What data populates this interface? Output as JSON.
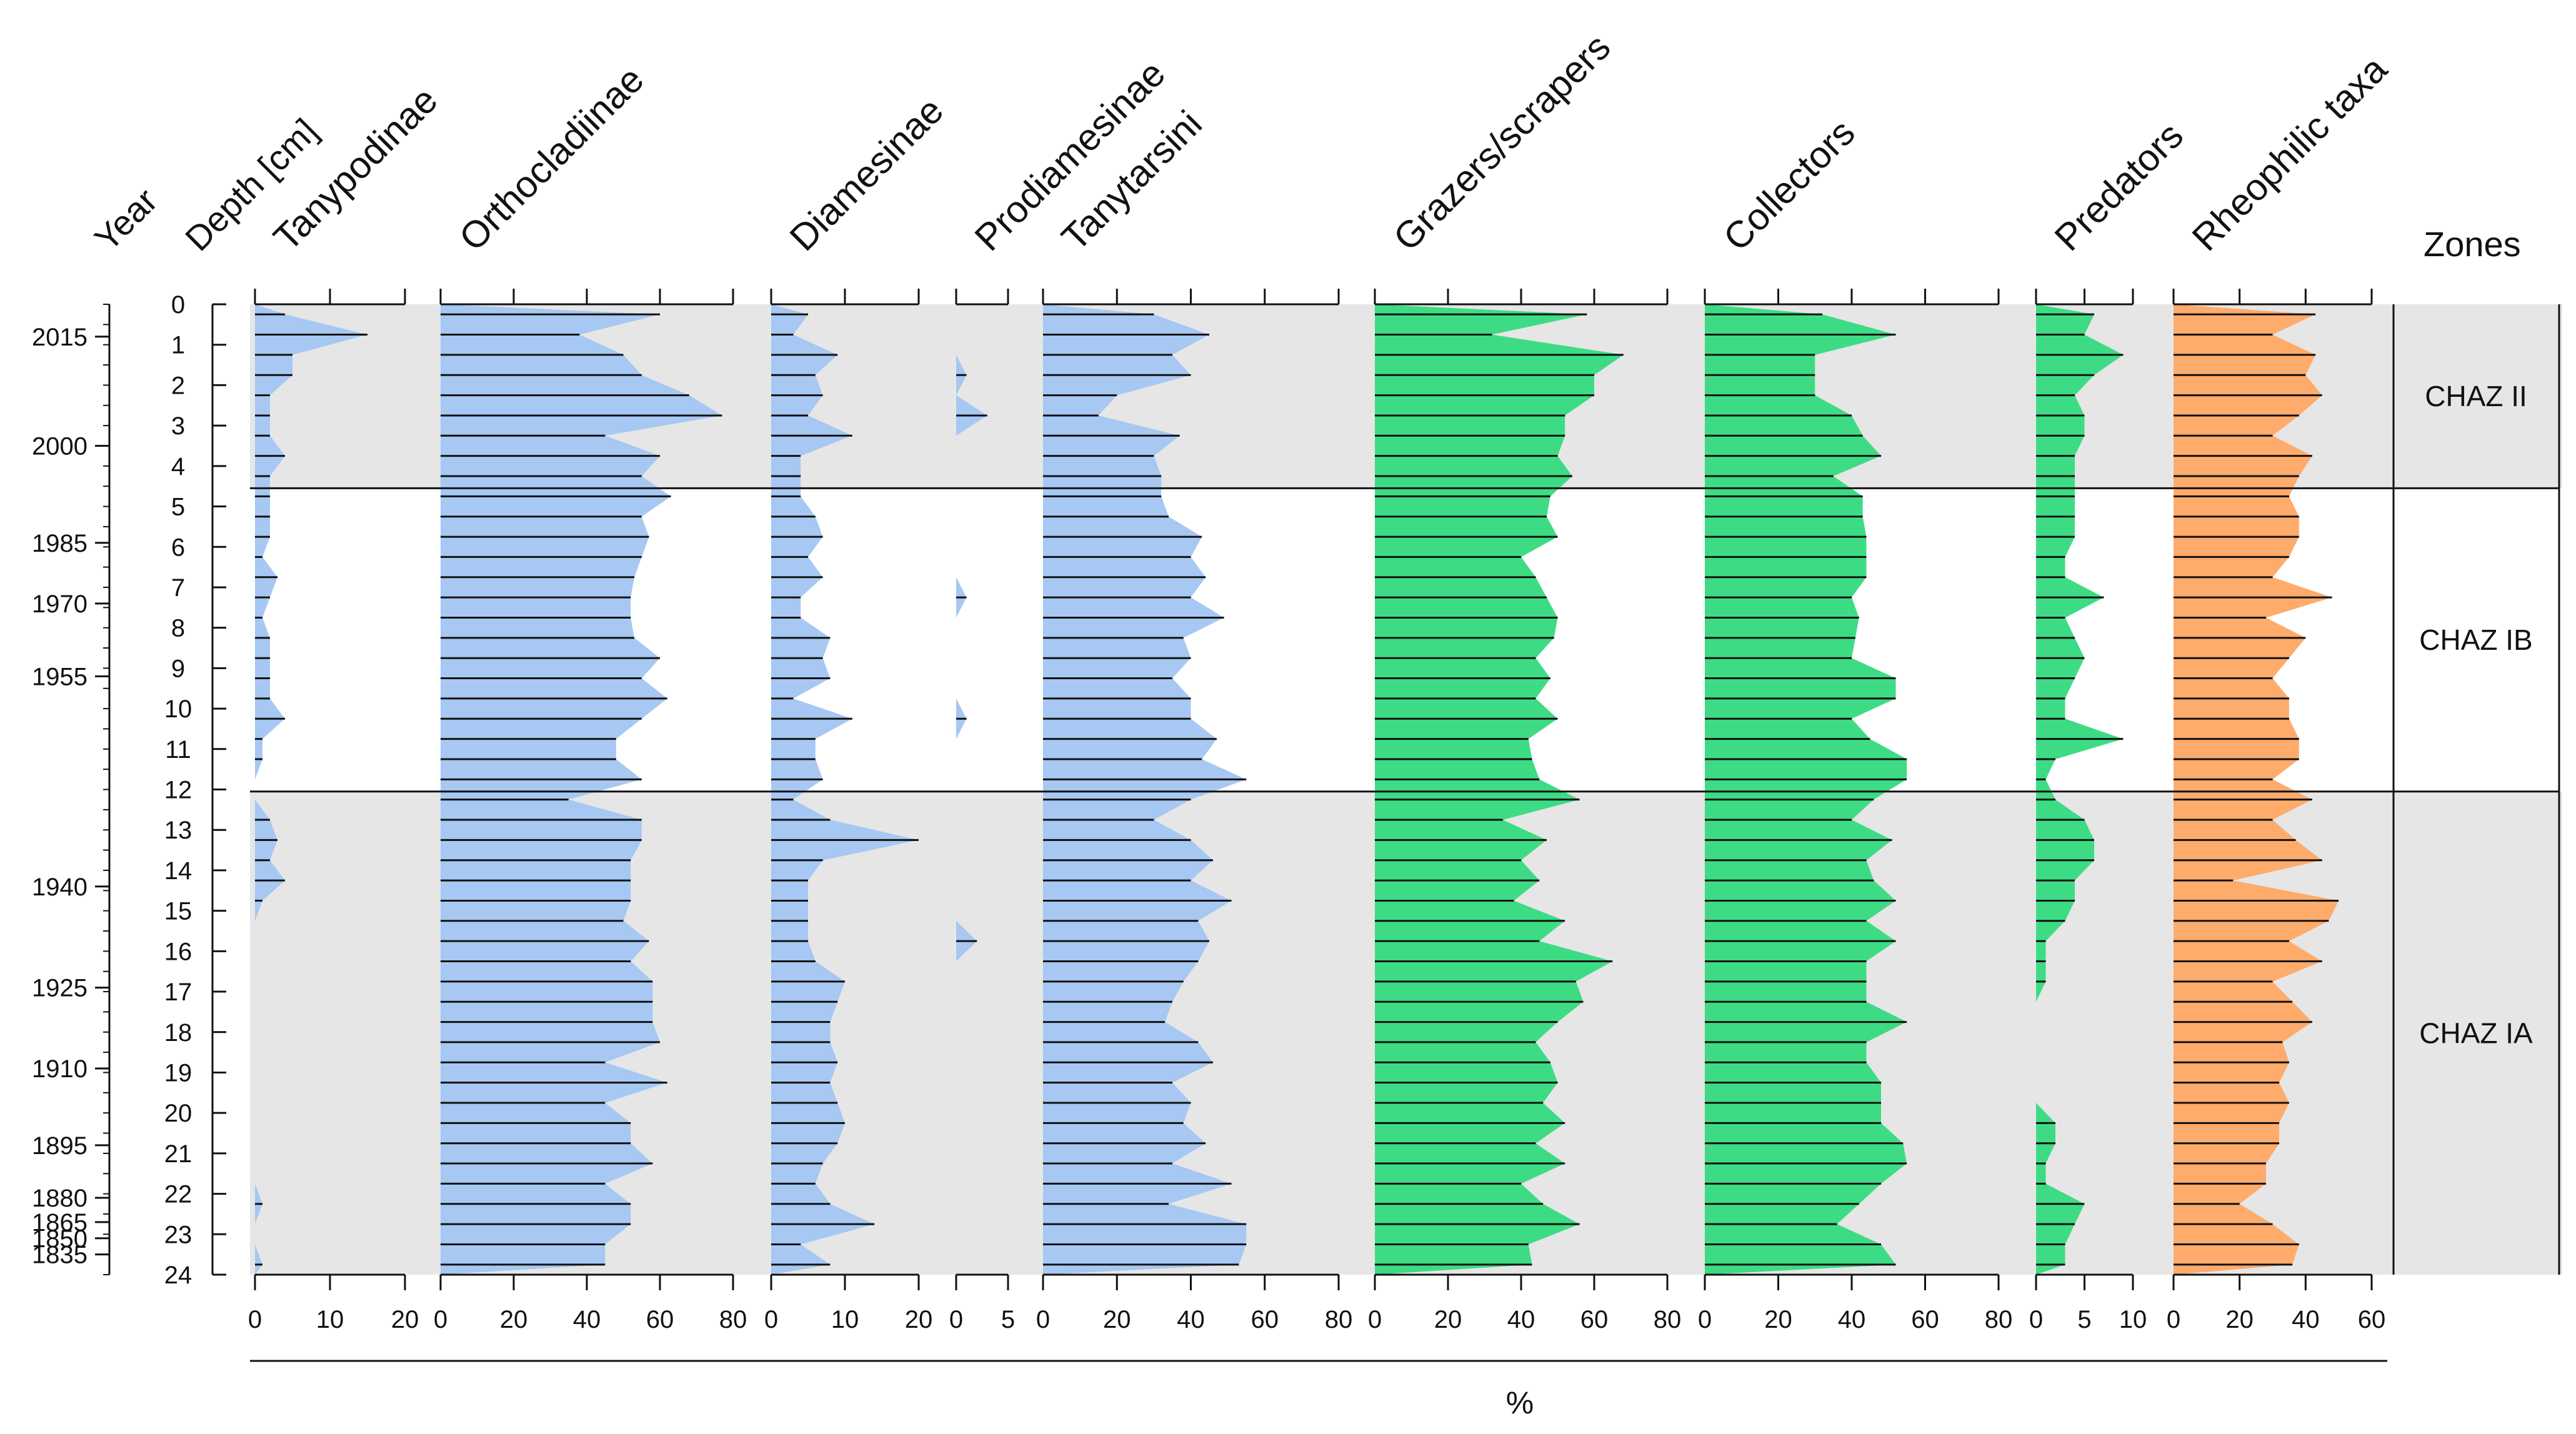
{
  "chart_data": {
    "type": "area",
    "title": "",
    "xlabel": "%",
    "ylabel": "Depth [cm]",
    "year_label": "Year",
    "zones_label": "Zones",
    "depth_range": [
      0,
      24
    ],
    "depth_ticks": [
      "0",
      "1",
      "2",
      "3",
      "4",
      "5",
      "6",
      "7",
      "8",
      "9",
      "10",
      "11",
      "12",
      "13",
      "14",
      "15",
      "16",
      "17",
      "18",
      "19",
      "20",
      "21",
      "22",
      "23",
      "24"
    ],
    "year_ticks": [
      {
        "label": "2015",
        "depth": 0.8
      },
      {
        "label": "2000",
        "depth": 3.5
      },
      {
        "label": "1985",
        "depth": 5.9
      },
      {
        "label": "1970",
        "depth": 7.4
      },
      {
        "label": "1955",
        "depth": 9.2
      },
      {
        "label": "1940",
        "depth": 14.4
      },
      {
        "label": "1925",
        "depth": 16.9
      },
      {
        "label": "1910",
        "depth": 18.9
      },
      {
        "label": "1895",
        "depth": 20.8
      },
      {
        "label": "1880",
        "depth": 22.1
      },
      {
        "label": "1865",
        "depth": 22.7
      },
      {
        "label": "1850",
        "depth": 23.1
      },
      {
        "label": "1835",
        "depth": 23.5
      }
    ],
    "depths": [
      0.25,
      0.75,
      1.25,
      1.75,
      2.25,
      2.75,
      3.25,
      3.75,
      4.25,
      4.75,
      5.25,
      5.75,
      6.25,
      6.75,
      7.25,
      7.75,
      8.25,
      8.75,
      9.25,
      9.75,
      10.25,
      10.75,
      11.25,
      11.75,
      12.25,
      12.75,
      13.25,
      13.75,
      14.25,
      14.75,
      15.25,
      15.75,
      16.25,
      16.75,
      17.25,
      17.75,
      18.25,
      18.75,
      19.25,
      19.75,
      20.25,
      20.75,
      21.25,
      21.75,
      22.25,
      22.75,
      23.25,
      23.75
    ],
    "zones": [
      {
        "label": "CHAZ II",
        "top": 0,
        "bottom": 4.55,
        "shaded": true
      },
      {
        "label": "CHAZ IB",
        "top": 4.55,
        "bottom": 12.05,
        "shaded": false
      },
      {
        "label": "CHAZ IA",
        "top": 12.05,
        "bottom": 24,
        "shaded": true
      }
    ],
    "series": [
      {
        "name": "Tanypodinae",
        "color": "#a6c8f2",
        "xlim": [
          0,
          20
        ],
        "ticks": [
          "0",
          "10",
          "20"
        ],
        "values": [
          4,
          15,
          5,
          5,
          2,
          2,
          2,
          4,
          2,
          2,
          2,
          2,
          1,
          3,
          2,
          1,
          2,
          2,
          2,
          2,
          4,
          1,
          1,
          0,
          0,
          2,
          3,
          2,
          4,
          1,
          0,
          0,
          0,
          0,
          0,
          0,
          0,
          0,
          0,
          0,
          0,
          0,
          0,
          0,
          1,
          0,
          0,
          1
        ]
      },
      {
        "name": "Orthocladiinae",
        "color": "#a6c8f2",
        "xlim": [
          0,
          80
        ],
        "ticks": [
          "0",
          "20",
          "40",
          "60",
          "80"
        ],
        "values": [
          60,
          38,
          50,
          55,
          68,
          77,
          45,
          60,
          55,
          63,
          55,
          57,
          55,
          53,
          52,
          52,
          53,
          60,
          55,
          62,
          55,
          48,
          48,
          55,
          35,
          55,
          55,
          52,
          52,
          52,
          50,
          57,
          52,
          58,
          58,
          58,
          60,
          45,
          62,
          45,
          52,
          52,
          58,
          45,
          52,
          52,
          45,
          45
        ]
      },
      {
        "name": "Diamesinae",
        "color": "#a6c8f2",
        "xlim": [
          0,
          20
        ],
        "ticks": [
          "0",
          "10",
          "20"
        ],
        "values": [
          5,
          3,
          9,
          6,
          7,
          5,
          11,
          4,
          4,
          4,
          6,
          7,
          5,
          7,
          4,
          4,
          8,
          7,
          8,
          3,
          11,
          6,
          6,
          7,
          3,
          8,
          20,
          7,
          5,
          5,
          5,
          5,
          6,
          10,
          9,
          8,
          8,
          9,
          8,
          9,
          10,
          9,
          7,
          6,
          8,
          14,
          4,
          8
        ]
      },
      {
        "name": "Prodiamesinae",
        "color": "#a6c8f2",
        "xlim": [
          0,
          5
        ],
        "ticks": [
          "0",
          "5"
        ],
        "values": [
          0,
          0,
          0,
          1,
          0,
          3,
          0,
          0,
          0,
          0,
          0,
          0,
          0,
          0,
          1,
          0,
          0,
          0,
          0,
          0,
          1,
          0,
          0,
          0,
          0,
          0,
          0,
          0,
          0,
          0,
          0,
          2,
          0,
          0,
          0,
          0,
          0,
          0,
          0,
          0,
          0,
          0,
          0,
          0,
          0,
          0,
          0,
          0
        ]
      },
      {
        "name": "Tanytarsini",
        "color": "#a6c8f2",
        "xlim": [
          0,
          80
        ],
        "ticks": [
          "0",
          "20",
          "40",
          "60",
          "80"
        ],
        "values": [
          30,
          45,
          35,
          40,
          20,
          15,
          37,
          30,
          32,
          32,
          34,
          43,
          40,
          44,
          40,
          49,
          38,
          40,
          35,
          40,
          40,
          47,
          43,
          55,
          40,
          30,
          40,
          46,
          40,
          51,
          42,
          45,
          42,
          38,
          35,
          33,
          42,
          46,
          35,
          40,
          38,
          44,
          35,
          51,
          34,
          55,
          55,
          53
        ]
      },
      {
        "name": "Grazers/scrapers",
        "color": "#3ddc84",
        "xlim": [
          0,
          80
        ],
        "ticks": [
          "0",
          "20",
          "40",
          "60",
          "80"
        ],
        "values": [
          58,
          32,
          68,
          60,
          60,
          52,
          52,
          50,
          54,
          48,
          47,
          50,
          40,
          44,
          47,
          50,
          49,
          44,
          48,
          44,
          50,
          42,
          43,
          45,
          56,
          35,
          47,
          40,
          45,
          38,
          52,
          45,
          65,
          55,
          57,
          50,
          44,
          48,
          50,
          46,
          52,
          44,
          52,
          40,
          46,
          56,
          42,
          43
        ]
      },
      {
        "name": "Collectors",
        "color": "#3ddc84",
        "xlim": [
          0,
          80
        ],
        "ticks": [
          "0",
          "20",
          "40",
          "60",
          "80"
        ],
        "values": [
          32,
          52,
          30,
          30,
          30,
          40,
          43,
          48,
          35,
          43,
          43,
          44,
          44,
          44,
          40,
          42,
          41,
          40,
          52,
          52,
          40,
          45,
          55,
          55,
          46,
          40,
          51,
          44,
          46,
          52,
          44,
          52,
          44,
          44,
          44,
          55,
          44,
          44,
          48,
          48,
          48,
          54,
          55,
          48,
          42,
          36,
          48,
          52
        ]
      },
      {
        "name": "Predators",
        "color": "#3ddc84",
        "xlim": [
          0,
          10
        ],
        "ticks": [
          "0",
          "5",
          "10"
        ],
        "values": [
          6,
          5,
          9,
          6,
          4,
          5,
          5,
          4,
          4,
          4,
          4,
          4,
          3,
          3,
          7,
          3,
          4,
          5,
          4,
          3,
          3,
          9,
          2,
          1,
          2,
          5,
          6,
          6,
          4,
          4,
          3,
          1,
          1,
          1,
          0,
          0,
          0,
          0,
          0,
          0,
          2,
          2,
          1,
          1,
          5,
          4,
          3,
          3
        ]
      },
      {
        "name": "Rheophilic taxa",
        "color": "#ffab6b",
        "xlim": [
          0,
          60
        ],
        "ticks": [
          "0",
          "20",
          "40",
          "60"
        ],
        "values": [
          43,
          30,
          43,
          40,
          45,
          38,
          30,
          42,
          38,
          35,
          38,
          38,
          35,
          30,
          48,
          28,
          40,
          35,
          30,
          35,
          35,
          38,
          38,
          30,
          42,
          30,
          37,
          45,
          18,
          50,
          47,
          35,
          45,
          30,
          36,
          42,
          33,
          35,
          32,
          35,
          32,
          32,
          28,
          28,
          20,
          30,
          38,
          36
        ]
      }
    ]
  }
}
